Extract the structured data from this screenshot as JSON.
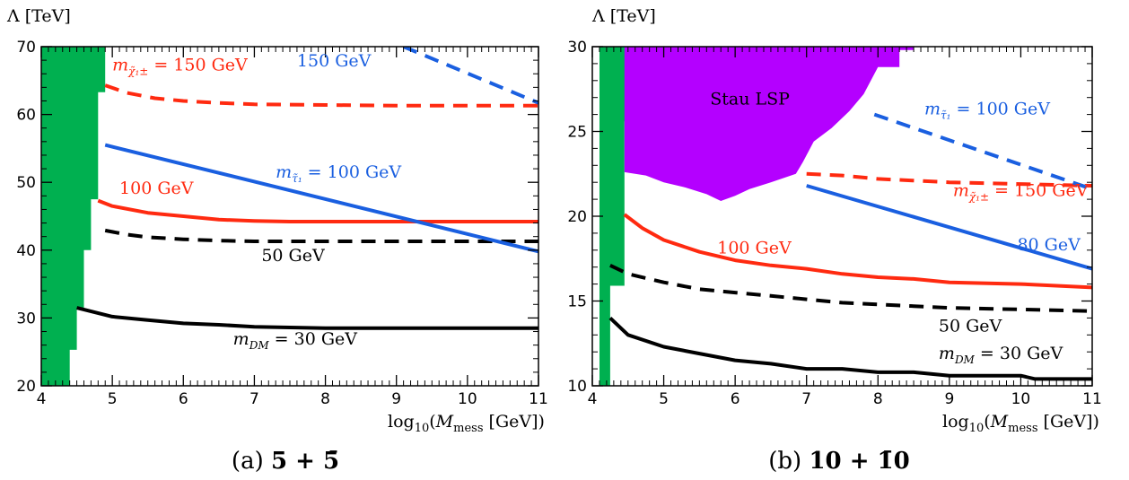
{
  "chart_data": [
    {
      "type": "line",
      "caption_prefix": "(a)",
      "caption_math": "5 + 5̄",
      "ylabel": "Λ [TeV]",
      "xlabel": "log10(Mmess [GeV])",
      "xlim": [
        4,
        11
      ],
      "ylim": [
        20,
        70
      ],
      "xticks": [
        4,
        5,
        6,
        7,
        8,
        9,
        10,
        11
      ],
      "yticks": [
        20,
        30,
        40,
        50,
        60,
        70
      ],
      "regions": [
        {
          "name": "excluded",
          "color": "#00b050",
          "boundary": [
            [
              4.0,
              20
            ],
            [
              4.4,
              20
            ],
            [
              4.4,
              25.3
            ],
            [
              4.5,
              25.3
            ],
            [
              4.5,
              31.5
            ],
            [
              4.6,
              31.5
            ],
            [
              4.6,
              40
            ],
            [
              4.7,
              40
            ],
            [
              4.7,
              47.5
            ],
            [
              4.8,
              47.5
            ],
            [
              4.8,
              63.3
            ],
            [
              4.9,
              63.3
            ],
            [
              4.9,
              70
            ],
            [
              4.0,
              70
            ]
          ]
        }
      ],
      "series": [
        {
          "color": "#000000",
          "dash": false,
          "points": [
            [
              4.5,
              31.5
            ],
            [
              5,
              30.2
            ],
            [
              5.5,
              29.7
            ],
            [
              6,
              29.2
            ],
            [
              6.5,
              29
            ],
            [
              7,
              28.7
            ],
            [
              8,
              28.5
            ],
            [
              9,
              28.5
            ],
            [
              11,
              28.5
            ]
          ]
        },
        {
          "color": "#000000",
          "dash": true,
          "points": [
            [
              4.9,
              42.9
            ],
            [
              5.2,
              42.3
            ],
            [
              5.5,
              41.9
            ],
            [
              6,
              41.6
            ],
            [
              6.5,
              41.4
            ],
            [
              7,
              41.3
            ],
            [
              8,
              41.3
            ],
            [
              9,
              41.3
            ],
            [
              11,
              41.3
            ]
          ]
        },
        {
          "color": "#ff2a10",
          "dash": false,
          "points": [
            [
              4.8,
              47.3
            ],
            [
              5,
              46.5
            ],
            [
              5.5,
              45.5
            ],
            [
              6,
              45
            ],
            [
              6.5,
              44.5
            ],
            [
              7,
              44.3
            ],
            [
              7.5,
              44.2
            ],
            [
              8,
              44.2
            ],
            [
              9,
              44.2
            ],
            [
              11,
              44.2
            ]
          ]
        },
        {
          "color": "#ff2a10",
          "dash": true,
          "points": [
            [
              4.9,
              64.3
            ],
            [
              5.2,
              63.2
            ],
            [
              5.6,
              62.4
            ],
            [
              6,
              62
            ],
            [
              6.5,
              61.7
            ],
            [
              7,
              61.5
            ],
            [
              8,
              61.4
            ],
            [
              9,
              61.3
            ],
            [
              11,
              61.3
            ]
          ]
        },
        {
          "color": "#1a5fe0",
          "dash": false,
          "points": [
            [
              4.9,
              55.5
            ],
            [
              11,
              39.8
            ]
          ]
        },
        {
          "color": "#1a5fe0",
          "dash": true,
          "points": [
            [
              9.1,
              70
            ],
            [
              11,
              61.7
            ]
          ]
        }
      ],
      "annotations": [
        {
          "text": "m_DM = 30 GeV",
          "main": "m",
          "sub": "DM",
          "rest": " = 30 GeV",
          "x": 6.7,
          "y": 26.1,
          "color": "#000000"
        },
        {
          "text": "50 GeV",
          "x": 7.1,
          "y": 38.4,
          "color": "#000000"
        },
        {
          "text": "100 GeV",
          "x": 5.1,
          "y": 48.3,
          "color": "#ff2a10"
        },
        {
          "text": "m_χ̃1± = 150 GeV",
          "main": "m",
          "sub": "χ̃₁±",
          "rest": " = 150 GeV",
          "x": 5.0,
          "y": 66.5,
          "color": "#ff2a10"
        },
        {
          "text": "m_τ̃1 = 100 GeV",
          "main": "m",
          "sub": "τ̃₁",
          "rest": " = 100 GeV",
          "x": 7.3,
          "y": 50.7,
          "color": "#1a5fe0"
        },
        {
          "text": "150 GeV",
          "x": 7.6,
          "y": 67.1,
          "color": "#1a5fe0"
        }
      ]
    },
    {
      "type": "line",
      "caption_prefix": "(b)",
      "caption_math": "10 + 1̄0",
      "ylabel": "Λ [TeV]",
      "xlabel": "log10(Mmess [GeV])",
      "xlim": [
        4,
        11
      ],
      "ylim": [
        10,
        30
      ],
      "xticks": [
        4,
        5,
        6,
        7,
        8,
        9,
        10,
        11
      ],
      "yticks": [
        10,
        15,
        20,
        25,
        30
      ],
      "regions": [
        {
          "name": "excluded",
          "color": "#00b050",
          "boundary": [
            [
              4.1,
              10
            ],
            [
              4.25,
              10
            ],
            [
              4.25,
              15.9
            ],
            [
              4.45,
              15.9
            ],
            [
              4.45,
              25.6
            ],
            [
              4.55,
              25.6
            ],
            [
              4.55,
              26.4
            ],
            [
              4.65,
              26.4
            ],
            [
              4.65,
              30
            ],
            [
              4.1,
              30
            ]
          ]
        },
        {
          "name": "Stau LSP",
          "label": "Stau LSP",
          "color": "#b400ff",
          "boundary": [
            [
              4.45,
              30
            ],
            [
              8.5,
              30
            ],
            [
              8.5,
              29.8
            ],
            [
              8.3,
              29.8
            ],
            [
              8.3,
              28.8
            ],
            [
              8.0,
              28.8
            ],
            [
              7.8,
              27.2
            ],
            [
              7.6,
              26.2
            ],
            [
              7.35,
              25.2
            ],
            [
              7.1,
              24.4
            ],
            [
              6.95,
              23.2
            ],
            [
              6.85,
              22.5
            ],
            [
              6.5,
              22.0
            ],
            [
              6.2,
              21.6
            ],
            [
              6.0,
              21.2
            ],
            [
              5.8,
              20.9
            ],
            [
              5.6,
              21.3
            ],
            [
              5.3,
              21.7
            ],
            [
              5.0,
              22.0
            ],
            [
              4.75,
              22.4
            ],
            [
              4.45,
              22.6
            ]
          ]
        }
      ],
      "series": [
        {
          "color": "#000000",
          "dash": false,
          "points": [
            [
              4.25,
              14
            ],
            [
              4.5,
              13
            ],
            [
              5,
              12.3
            ],
            [
              5.5,
              11.9
            ],
            [
              6,
              11.5
            ],
            [
              6.5,
              11.3
            ],
            [
              7,
              11
            ],
            [
              7.5,
              11
            ],
            [
              8,
              10.8
            ],
            [
              8.5,
              10.8
            ],
            [
              9,
              10.6
            ],
            [
              10,
              10.6
            ],
            [
              10.2,
              10.4
            ],
            [
              11,
              10.4
            ]
          ]
        },
        {
          "color": "#000000",
          "dash": true,
          "points": [
            [
              4.25,
              17.1
            ],
            [
              4.5,
              16.6
            ],
            [
              5,
              16.1
            ],
            [
              5.5,
              15.7
            ],
            [
              6,
              15.5
            ],
            [
              6.5,
              15.3
            ],
            [
              7,
              15.1
            ],
            [
              7.5,
              14.9
            ],
            [
              8,
              14.8
            ],
            [
              8.5,
              14.7
            ],
            [
              9,
              14.6
            ],
            [
              10,
              14.5
            ],
            [
              11,
              14.4
            ]
          ]
        },
        {
          "color": "#ff2a10",
          "dash": false,
          "points": [
            [
              4.45,
              20.1
            ],
            [
              4.7,
              19.3
            ],
            [
              5,
              18.6
            ],
            [
              5.5,
              17.9
            ],
            [
              6,
              17.4
            ],
            [
              6.5,
              17.1
            ],
            [
              7,
              16.9
            ],
            [
              7.5,
              16.6
            ],
            [
              8,
              16.4
            ],
            [
              8.5,
              16.3
            ],
            [
              9,
              16.1
            ],
            [
              10,
              16
            ],
            [
              11,
              15.8
            ]
          ]
        },
        {
          "color": "#ff2a10",
          "dash": true,
          "points": [
            [
              7.0,
              22.5
            ],
            [
              7.5,
              22.4
            ],
            [
              8,
              22.2
            ],
            [
              8.5,
              22.1
            ],
            [
              9,
              22
            ],
            [
              10,
              21.9
            ],
            [
              11,
              21.8
            ]
          ]
        },
        {
          "color": "#1a5fe0",
          "dash": false,
          "points": [
            [
              7.0,
              21.8
            ],
            [
              11,
              16.9
            ]
          ]
        },
        {
          "color": "#1a5fe0",
          "dash": true,
          "points": [
            [
              7.95,
              26.0
            ],
            [
              11,
              21.6
            ]
          ]
        }
      ],
      "annotations": [
        {
          "text": "Stau LSP",
          "x": 5.65,
          "y": 26.6,
          "color": "#000000"
        },
        {
          "text": "m_τ̃1 = 100 GeV",
          "main": "m",
          "sub": "τ̃₁",
          "rest": " = 100 GeV",
          "x": 8.65,
          "y": 26.0,
          "color": "#1a5fe0"
        },
        {
          "text": "m_χ̃1± = 150 GeV",
          "main": "m",
          "sub": "χ̃₁±",
          "rest": " = 150 GeV",
          "x": 9.05,
          "y": 21.2,
          "color": "#ff2a10"
        },
        {
          "text": "80 GeV",
          "x": 9.95,
          "y": 18.0,
          "color": "#1a5fe0"
        },
        {
          "text": "100 GeV",
          "x": 5.75,
          "y": 17.8,
          "color": "#ff2a10"
        },
        {
          "text": "50 GeV",
          "x": 8.85,
          "y": 13.2,
          "color": "#000000"
        },
        {
          "text": "m_DM = 30 GeV",
          "main": "m",
          "sub": "DM",
          "rest": " = 30 GeV",
          "x": 8.85,
          "y": 11.6,
          "color": "#000000"
        }
      ]
    }
  ]
}
